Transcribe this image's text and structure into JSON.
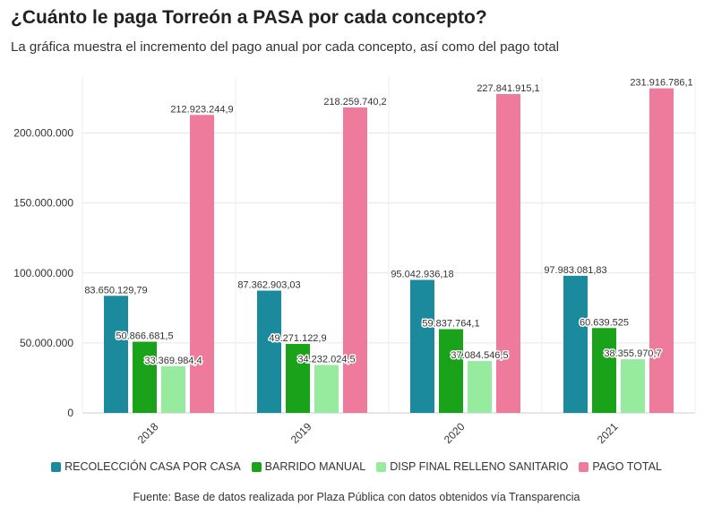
{
  "title": "¿Cuánto le paga Torreón a PASA por cada concepto?",
  "subtitle": "La gráfica muestra el incremento del pago anual por cada concepto, así como del pago total",
  "source": "Fuente: Base de datos realizada por Plaza Pública con datos obtenidos vía Transparencia",
  "chart_data": {
    "type": "bar",
    "title": "¿Cuánto le paga Torreón a PASA por cada concepto?",
    "subtitle": "La gráfica muestra el incremento del pago anual por cada concepto, así como del pago total",
    "categories": [
      "2018",
      "2019",
      "2020",
      "2021"
    ],
    "yticks": [
      "0",
      "50.000.000",
      "100.000.000",
      "150.000.000",
      "200.000.000"
    ],
    "ytick_values": [
      0,
      50000000,
      100000000,
      150000000,
      200000000
    ],
    "ylim": [
      0,
      240000000
    ],
    "grid": true,
    "legend_position": "bottom",
    "series": [
      {
        "name": "RECOLECCIÓN CASA POR CASA",
        "color": "#1b8a9c",
        "values": [
          83650129.79,
          87362903.03,
          95042936.18,
          97983081.83
        ],
        "labels": [
          "83.650.129,79",
          "87.362.903,03",
          "95.042.936,18",
          "97.983.081,83"
        ]
      },
      {
        "name": "BARRIDO MANUAL",
        "color": "#1aa31a",
        "values": [
          50866681.5,
          49271122.9,
          59837764.1,
          60639525
        ],
        "labels": [
          "50.866.681,5",
          "49.271.122,9",
          "59.837.764,1",
          "60.639.525"
        ]
      },
      {
        "name": "DISP FINAL RELLENO SANITARIO",
        "color": "#97eb9f",
        "values": [
          33369984.4,
          34232024.5,
          37084546.5,
          38355970.7
        ],
        "labels": [
          "33.369.984,4",
          "34.232.024,5",
          "37.084.546,5",
          "38.355.970,7"
        ]
      },
      {
        "name": "PAGO TOTAL",
        "color": "#ee7b9c",
        "values": [
          212923244.9,
          218259740.2,
          227841915.1,
          231916786.1
        ],
        "labels": [
          "212.923.244,9",
          "218.259.740,2",
          "227.841.915,1",
          "231.916.786,1"
        ]
      }
    ]
  }
}
